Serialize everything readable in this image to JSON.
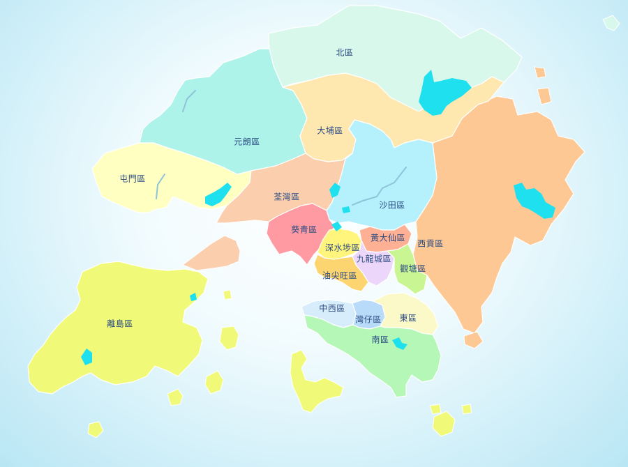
{
  "colors": {
    "north": "#d9f8ec",
    "yuen_long": "#aef3ea",
    "tuen_mun": "#ffffc2",
    "tai_po": "#fee8b0",
    "sha_tin": "#b4f1fd",
    "tsuen_wan": "#fbcfae",
    "kwai_tsing": "#ff9aa2",
    "sai_kung": "#fdc894",
    "islands": "#f0fa78",
    "sham_shui_po": "#fff47c",
    "wong_tai_sin": "#fdb093",
    "kowloon_city": "#ecd7fb",
    "yau_tsim_mong": "#fdd570",
    "kwun_tong": "#c9f592",
    "central_western": "#d8edfb",
    "wan_chai": "#b7dbf8",
    "eastern": "#fcf9c8",
    "southern": "#b4f7b6",
    "reservoir": "#1ee0ee",
    "label": "#2a4a80"
  },
  "districts": [
    {
      "id": "north",
      "name": "北區"
    },
    {
      "id": "yuen_long",
      "name": "元朗區"
    },
    {
      "id": "tai_po",
      "name": "大埔區"
    },
    {
      "id": "tuen_mun",
      "name": "屯門區"
    },
    {
      "id": "tsuen_wan",
      "name": "荃灣區"
    },
    {
      "id": "sha_tin",
      "name": "沙田區"
    },
    {
      "id": "kwai_tsing",
      "name": "葵青區"
    },
    {
      "id": "wong_tai_sin",
      "name": "黃大仙區"
    },
    {
      "id": "sai_kung",
      "name": "西貢區"
    },
    {
      "id": "sham_shui_po",
      "name": "深水埗區"
    },
    {
      "id": "kowloon_city",
      "name": "九龍城區"
    },
    {
      "id": "kwun_tong",
      "name": "觀塘區"
    },
    {
      "id": "yau_tsim_mong",
      "name": "油尖旺區"
    },
    {
      "id": "islands",
      "name": "離島區"
    },
    {
      "id": "central_western",
      "name": "中西區"
    },
    {
      "id": "wan_chai",
      "name": "灣仔區"
    },
    {
      "id": "eastern",
      "name": "東區"
    },
    {
      "id": "southern",
      "name": "南區"
    }
  ]
}
